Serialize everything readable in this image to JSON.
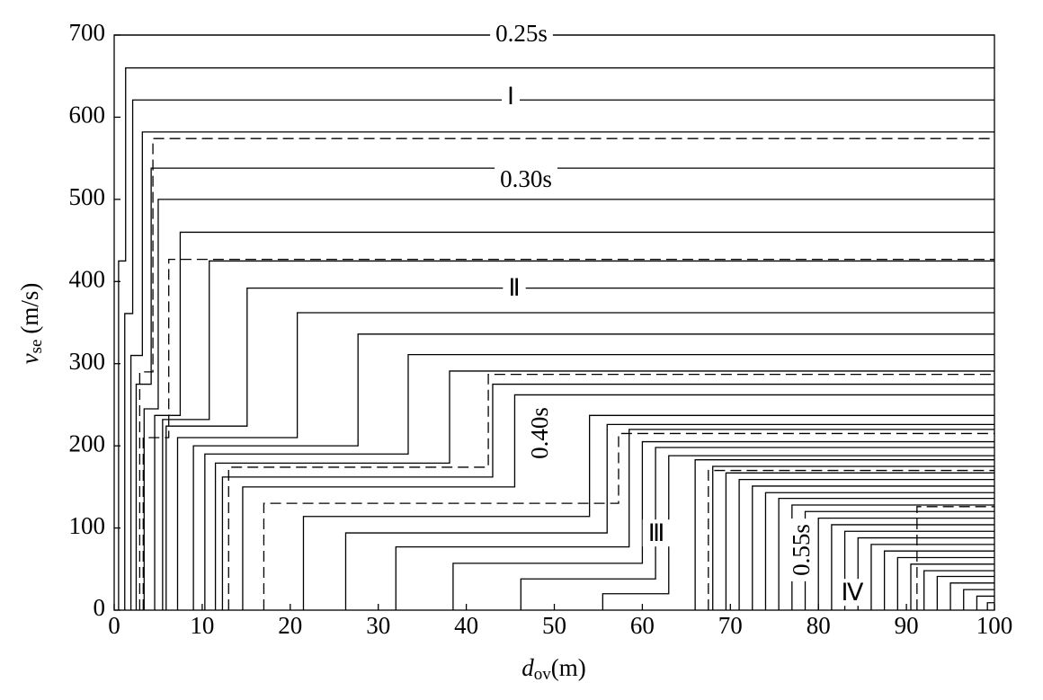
{
  "chart_data": {
    "type": "line",
    "color": "#000000",
    "xlabel": {
      "symbol": "d",
      "subscript": "ov",
      "unit": "(m)"
    },
    "ylabel": {
      "symbol": "v",
      "subscript": "se",
      "unit": "(m/s)"
    },
    "xlim": [
      0,
      100
    ],
    "ylim": [
      0,
      700
    ],
    "xticks": [
      0,
      10,
      20,
      30,
      40,
      50,
      60,
      70,
      80,
      90,
      100
    ],
    "yticks": [
      0,
      100,
      200,
      300,
      400,
      500,
      600,
      700
    ],
    "annotations": [
      "0.25s",
      "Ⅰ",
      "0.30s",
      "Ⅱ",
      "0.40s",
      "Ⅲ",
      "0.55s",
      "Ⅳ"
    ],
    "series": [
      {
        "x": [
          0,
          100
        ],
        "values": [
          700,
          700
        ]
      },
      {
        "x": [
          0.5,
          0.5,
          1.3,
          1.3,
          100
        ],
        "values": [
          0,
          425,
          425,
          660,
          660
        ]
      },
      {
        "x": [
          1.2,
          1.2,
          2.1,
          2.1,
          100
        ],
        "values": [
          0,
          361,
          361,
          621,
          621
        ]
      },
      {
        "x": [
          1.9,
          1.9,
          3.2,
          3.2,
          100
        ],
        "values": [
          0,
          310,
          310,
          582,
          582
        ]
      },
      {
        "x": [
          2.9,
          2.9,
          4.4,
          4.4,
          100
        ],
        "values": [
          0,
          290,
          290,
          574,
          574
        ],
        "style": "dashed"
      },
      {
        "x": [
          2.5,
          2.5,
          4.2,
          4.2,
          100
        ],
        "values": [
          0,
          275,
          275,
          538,
          538
        ]
      },
      {
        "x": [
          3.4,
          3.4,
          5.0,
          5.0,
          100
        ],
        "values": [
          0,
          245,
          245,
          500,
          500
        ]
      },
      {
        "x": [
          4.6,
          4.6,
          7.5,
          7.5,
          100
        ],
        "values": [
          0,
          237,
          237,
          460,
          460
        ]
      },
      {
        "x": [
          3.3,
          3.3,
          6.2,
          6.2,
          100
        ],
        "values": [
          0,
          210,
          210,
          427,
          427
        ],
        "style": "dashed"
      },
      {
        "x": [
          5.5,
          5.5,
          10.8,
          10.8,
          100
        ],
        "values": [
          0,
          232,
          232,
          425,
          425
        ]
      },
      {
        "x": [
          5.9,
          5.9,
          15.1,
          15.1,
          100
        ],
        "values": [
          0,
          224,
          224,
          392,
          392
        ]
      },
      {
        "x": [
          7.2,
          7.2,
          20.8,
          20.8,
          100
        ],
        "values": [
          0,
          210,
          210,
          362,
          362
        ]
      },
      {
        "x": [
          9.0,
          9.0,
          27.7,
          27.7,
          100
        ],
        "values": [
          0,
          200,
          200,
          336,
          336
        ]
      },
      {
        "x": [
          10.3,
          10.3,
          33.4,
          33.4,
          100
        ],
        "values": [
          0,
          190,
          190,
          311,
          311
        ]
      },
      {
        "x": [
          11.5,
          11.5,
          38.1,
          38.1,
          100
        ],
        "values": [
          0,
          179,
          179,
          291,
          291
        ]
      },
      {
        "x": [
          13.0,
          13.0,
          42.5,
          42.5,
          100
        ],
        "values": [
          0,
          174,
          174,
          287,
          287
        ],
        "style": "dashed"
      },
      {
        "x": [
          12.3,
          12.3,
          43.0,
          43.0,
          100
        ],
        "values": [
          0,
          162,
          162,
          275,
          275
        ]
      },
      {
        "x": [
          14.6,
          14.6,
          45.5,
          45.5,
          100
        ],
        "values": [
          0,
          150,
          150,
          262,
          262
        ]
      },
      {
        "x": [
          17.0,
          17.0,
          57.3,
          57.3,
          100
        ],
        "values": [
          0,
          130,
          130,
          215,
          215
        ],
        "style": "dashed"
      },
      {
        "x": [
          21.5,
          21.5,
          54.0,
          54.0,
          100
        ],
        "values": [
          0,
          114,
          114,
          237,
          237
        ]
      },
      {
        "x": [
          26.3,
          26.3,
          56.0,
          56.0,
          100
        ],
        "values": [
          0,
          94,
          94,
          226,
          226
        ]
      },
      {
        "x": [
          32.0,
          32.0,
          58.5,
          58.5,
          100
        ],
        "values": [
          0,
          77,
          77,
          220,
          220
        ]
      },
      {
        "x": [
          38.5,
          38.5,
          60.0,
          60.0,
          100
        ],
        "values": [
          0,
          57,
          57,
          205,
          205
        ]
      },
      {
        "x": [
          46.2,
          46.2,
          61.5,
          61.5,
          100
        ],
        "values": [
          0,
          38,
          38,
          198,
          198
        ]
      },
      {
        "x": [
          55.5,
          55.5,
          63.0,
          63.0,
          100
        ],
        "values": [
          0,
          20,
          20,
          188,
          188
        ]
      },
      {
        "x": [
          66,
          66,
          100
        ],
        "values": [
          0,
          183,
          183
        ]
      },
      {
        "x": [
          67.5,
          67.5,
          100
        ],
        "values": [
          0,
          170,
          170
        ],
        "style": "dashed"
      },
      {
        "x": [
          68,
          68,
          100
        ],
        "values": [
          0,
          175,
          175
        ]
      },
      {
        "x": [
          69.5,
          69.5,
          100
        ],
        "values": [
          0,
          167,
          167
        ]
      },
      {
        "x": [
          71,
          71,
          100
        ],
        "values": [
          0,
          159,
          159
        ]
      },
      {
        "x": [
          72.5,
          72.5,
          100
        ],
        "values": [
          0,
          151,
          151
        ]
      },
      {
        "x": [
          74,
          74,
          100
        ],
        "values": [
          0,
          143,
          143
        ]
      },
      {
        "x": [
          75.5,
          75.5,
          100
        ],
        "values": [
          0,
          136,
          136
        ]
      },
      {
        "x": [
          77,
          77,
          100
        ],
        "values": [
          0,
          128,
          128
        ]
      },
      {
        "x": [
          78.5,
          78.5,
          100
        ],
        "values": [
          0,
          120,
          120
        ]
      },
      {
        "x": [
          80,
          80,
          100
        ],
        "values": [
          0,
          112,
          112
        ]
      },
      {
        "x": [
          81.5,
          81.5,
          100
        ],
        "values": [
          0,
          104,
          104
        ]
      },
      {
        "x": [
          83,
          83,
          100
        ],
        "values": [
          0,
          96,
          96
        ]
      },
      {
        "x": [
          84.5,
          84.5,
          100
        ],
        "values": [
          0,
          88,
          88
        ]
      },
      {
        "x": [
          86,
          86,
          100
        ],
        "values": [
          0,
          80,
          80
        ]
      },
      {
        "x": [
          87.5,
          87.5,
          100
        ],
        "values": [
          0,
          72,
          72
        ]
      },
      {
        "x": [
          89,
          89,
          100
        ],
        "values": [
          0,
          64,
          64
        ]
      },
      {
        "x": [
          90.5,
          90.5,
          100
        ],
        "values": [
          0,
          56,
          56
        ]
      },
      {
        "x": [
          91.2,
          91.2,
          100
        ],
        "values": [
          0,
          126,
          126
        ],
        "style": "dashed"
      },
      {
        "x": [
          92,
          92,
          100
        ],
        "values": [
          0,
          48,
          48
        ]
      },
      {
        "x": [
          93.5,
          93.5,
          100
        ],
        "values": [
          0,
          41,
          41
        ]
      },
      {
        "x": [
          95,
          95,
          100
        ],
        "values": [
          0,
          33,
          33
        ]
      },
      {
        "x": [
          96.5,
          96.5,
          100
        ],
        "values": [
          0,
          25,
          25
        ]
      },
      {
        "x": [
          98,
          98,
          100
        ],
        "values": [
          0,
          17,
          17
        ]
      },
      {
        "x": [
          99.2,
          99.2,
          100
        ],
        "values": [
          0,
          9,
          9
        ]
      }
    ]
  }
}
